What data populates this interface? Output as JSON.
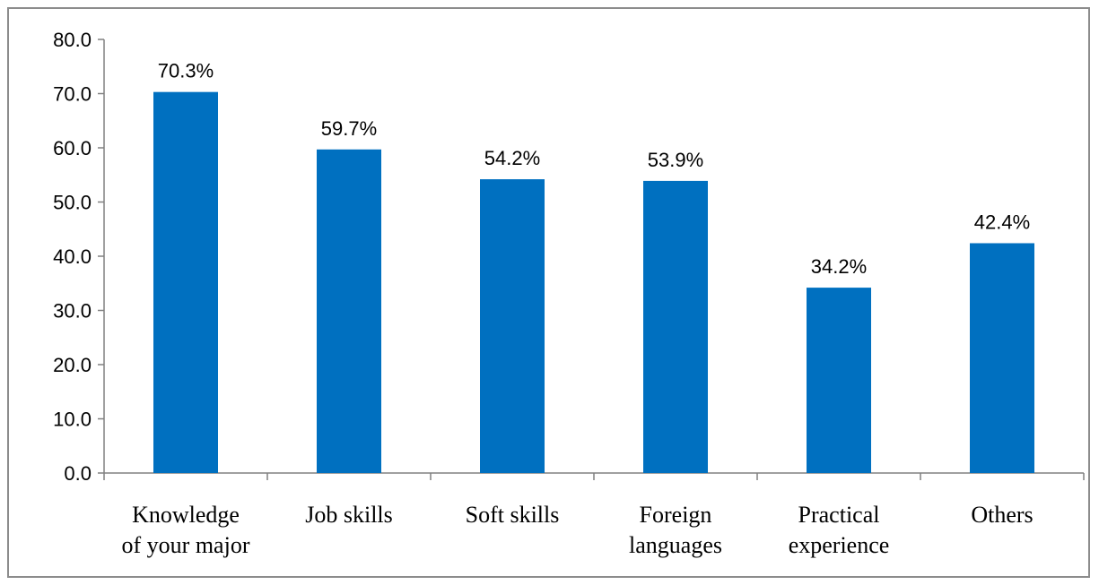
{
  "chart_data": {
    "type": "bar",
    "categories": [
      [
        "Knowledge",
        "of your major"
      ],
      [
        "Job skills"
      ],
      [
        "Soft skills"
      ],
      [
        "Foreign",
        "languages"
      ],
      [
        "Practical",
        "experience"
      ],
      [
        "Others"
      ]
    ],
    "values": [
      70.3,
      59.7,
      54.2,
      53.9,
      34.2,
      42.4
    ],
    "data_labels": [
      "70.3%",
      "59.7%",
      "54.2%",
      "53.9%",
      "34.2%",
      "42.4%"
    ],
    "title": "",
    "xlabel": "",
    "ylabel": "",
    "ylim": [
      0,
      80
    ],
    "yticks": [
      "0.0",
      "10.0",
      "20.0",
      "30.0",
      "40.0",
      "50.0",
      "60.0",
      "70.0",
      "80.0"
    ],
    "grid": false,
    "legend": "none",
    "bar_color": "#0070c0",
    "axis_color": "#808080"
  }
}
